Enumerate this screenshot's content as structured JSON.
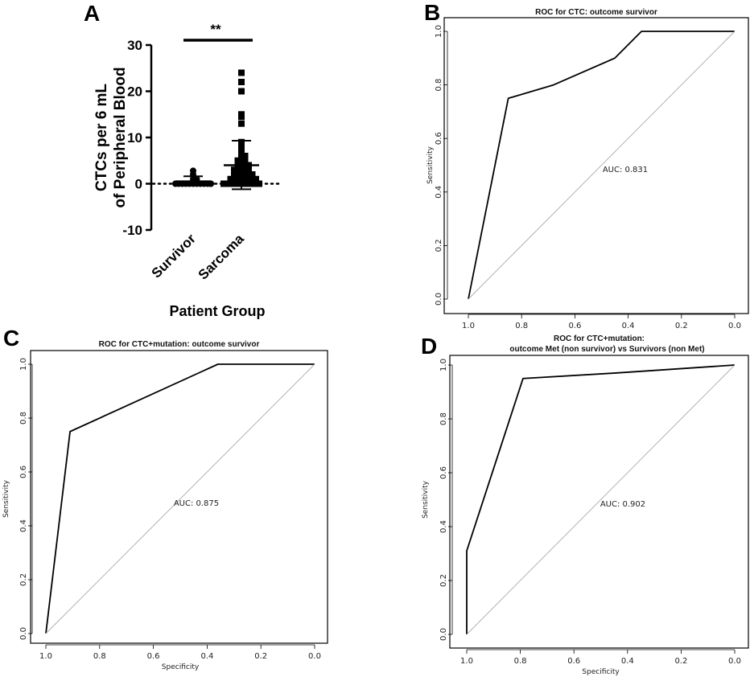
{
  "chart_data": [
    {
      "panel": "A",
      "type": "scatter",
      "categories": [
        "Survivor",
        "Sarcoma"
      ],
      "ylabel": "CTCs per 6 mL of Peripheral Blood",
      "xlabel": "Patient Group",
      "ylim": [
        -10,
        30
      ],
      "yticks": [
        "-10",
        "0",
        "10",
        "20",
        "30"
      ],
      "significance": "**",
      "reference_line": 0,
      "series": [
        {
          "name": "Survivor",
          "marker": "circle",
          "values": [
            0,
            0,
            0,
            0,
            0,
            0,
            0,
            0,
            0,
            0,
            0,
            0,
            0.3,
            0.5,
            1,
            1,
            2,
            2.8
          ],
          "mean": 0.5,
          "sd_upper": 1.6,
          "sd_lower": 0
        },
        {
          "name": "Sarcoma",
          "marker": "square",
          "values": [
            0,
            0,
            0,
            0,
            0,
            0,
            0,
            0,
            0,
            0,
            0,
            0,
            1,
            1,
            1,
            1,
            1,
            1,
            1,
            1,
            2,
            2,
            2,
            2,
            2,
            2,
            3,
            3,
            3,
            3,
            3,
            4,
            4,
            4,
            4,
            5,
            5,
            5,
            6,
            6,
            7,
            8,
            9,
            13,
            14.5,
            15,
            20,
            22,
            24
          ],
          "mean": 4,
          "sd_upper": 9.3,
          "sd_lower": -1.2
        }
      ]
    },
    {
      "panel": "B",
      "type": "line",
      "title": "ROC for CTC: outcome survivor",
      "xlabel": "",
      "ylabel": "Sensitivity",
      "xlim": [
        1.0,
        0.0
      ],
      "ylim": [
        0.0,
        1.0
      ],
      "xticks": [
        "1.0",
        "0.8",
        "0.6",
        "0.4",
        "0.2",
        "0.0"
      ],
      "yticks": [
        "0.0",
        "0.2",
        "0.4",
        "0.6",
        "0.8",
        "1.0"
      ],
      "auc_label": "AUC: 0.831",
      "series": [
        {
          "name": "ROC",
          "x": [
            1.0,
            0.85,
            0.68,
            0.45,
            0.35,
            0.0
          ],
          "y": [
            0.0,
            0.75,
            0.8,
            0.9,
            1.0,
            1.0
          ]
        },
        {
          "name": "chance",
          "x": [
            1.0,
            0.0
          ],
          "y": [
            0.0,
            1.0
          ]
        }
      ]
    },
    {
      "panel": "C",
      "type": "line",
      "title": "ROC for CTC+mutation: outcome survivor",
      "xlabel": "Specificity",
      "ylabel": "Sensitivity",
      "xlim": [
        1.0,
        0.0
      ],
      "ylim": [
        0.0,
        1.0
      ],
      "xticks": [
        "1.0",
        "0.8",
        "0.6",
        "0.4",
        "0.2",
        "0.0"
      ],
      "yticks": [
        "0.0",
        "0.2",
        "0.4",
        "0.6",
        "0.8",
        "1.0"
      ],
      "auc_label": "AUC: 0.875",
      "series": [
        {
          "name": "ROC",
          "x": [
            1.0,
            0.91,
            0.36,
            0.0
          ],
          "y": [
            0.0,
            0.75,
            1.0,
            1.0
          ]
        },
        {
          "name": "chance",
          "x": [
            1.0,
            0.0
          ],
          "y": [
            0.0,
            1.0
          ]
        }
      ]
    },
    {
      "panel": "D",
      "type": "line",
      "title": "ROC for CTC+mutation:",
      "subtitle": "outcome Met (non survivor) vs Survivors (non Met)",
      "xlabel": "Specificity",
      "ylabel": "Sensitivity",
      "xlim": [
        1.0,
        0.0
      ],
      "ylim": [
        0.0,
        1.0
      ],
      "xticks": [
        "1.0",
        "0.8",
        "0.6",
        "0.4",
        "0.2",
        "0.0"
      ],
      "yticks": [
        "0.0",
        "0.2",
        "0.4",
        "0.6",
        "0.8",
        "1.0"
      ],
      "auc_label": "AUC: 0.902",
      "series": [
        {
          "name": "ROC",
          "x": [
            1.0,
            1.0,
            0.79,
            0.45,
            0.0
          ],
          "y": [
            0.0,
            0.31,
            0.95,
            0.97,
            1.0
          ]
        },
        {
          "name": "chance",
          "x": [
            1.0,
            0.0
          ],
          "y": [
            0.0,
            1.0
          ]
        }
      ]
    }
  ]
}
